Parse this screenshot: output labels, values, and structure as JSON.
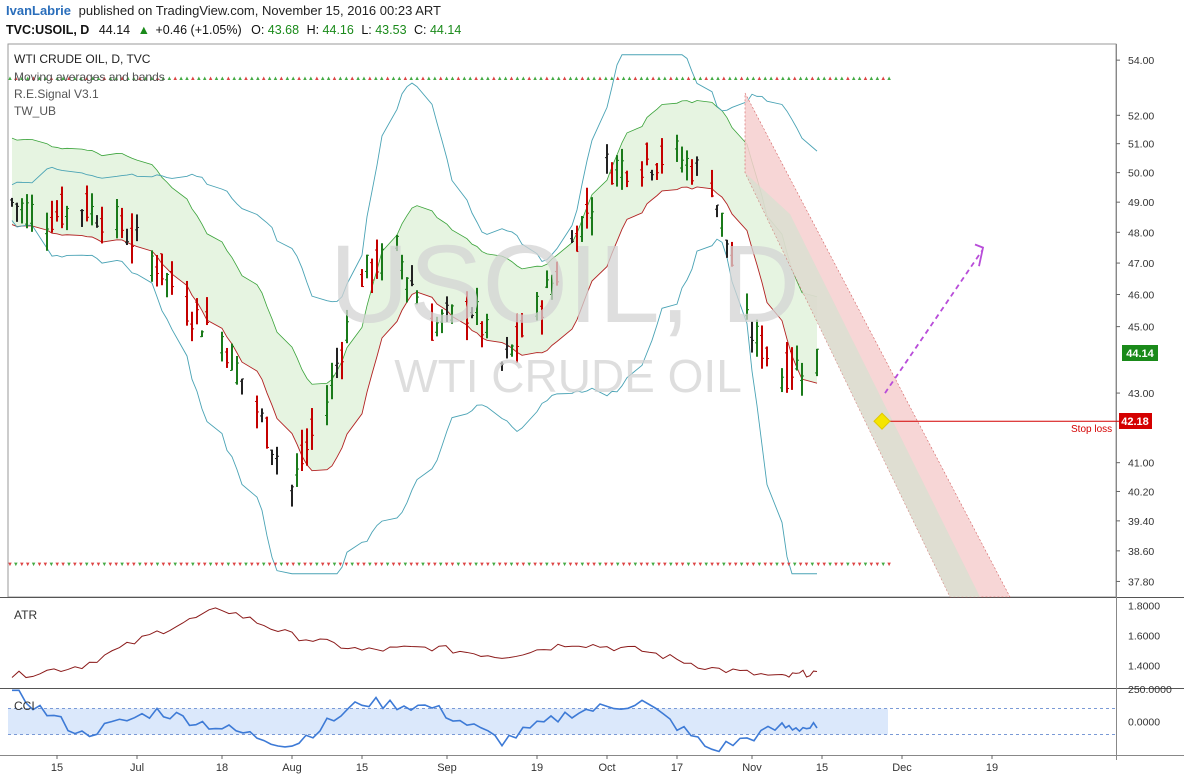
{
  "header": {
    "author": "IvanLabrie",
    "published_text": "published on TradingView.com, November 15, 2016 00:23 ART"
  },
  "quote": {
    "symbol": "TVC:USOIL, D",
    "last": "44.14",
    "change": "+0.46 (+1.05%)",
    "o_label": "O:",
    "o": "43.68",
    "h_label": "H:",
    "h": "44.16",
    "l_label": "L:",
    "l": "43.53",
    "c_label": "C:",
    "c": "44.14"
  },
  "legend": {
    "title": "WTI CRUDE OIL, D, TVC",
    "items": [
      "Moving averages and bands",
      "R.E.Signal V3.1",
      "TW_UB"
    ]
  },
  "watermark": {
    "big": "USOIL, D",
    "small": "WTI CRUDE OIL"
  },
  "colors": {
    "up": "#1a7a1a",
    "down": "#c40000",
    "neutral": "#222222",
    "band_fill": "#e6f4e1",
    "band_edge": "#3aa33a",
    "ma": "#b22222",
    "bollinger": "#4aa3b5",
    "channel_fill": "#f6d0d0",
    "channel_inner": "#cfe3cf",
    "cci_line": "#3d7ad6",
    "cci_fill": "#dbe8fb",
    "atr_line": "#8b1a1a",
    "projection": "#b84dd9",
    "stop": "#d40000",
    "last_price_box": "#1a8a1a",
    "marker": "#f5e500"
  },
  "annotations": {
    "stop_loss_label": "Stop loss",
    "stop_loss_price": "42.18",
    "last_price_label": "44.14"
  },
  "chart_data": [
    {
      "type": "line",
      "title": "WTI CRUDE OIL, D, TVC",
      "xlabel": "",
      "ylabel": "",
      "y_axis_ticks": [
        "54.00",
        "52.00",
        "51.00",
        "50.00",
        "49.00",
        "48.00",
        "47.00",
        "46.00",
        "45.00",
        "43.00",
        "41.00",
        "40.20",
        "39.40",
        "38.60",
        "37.80"
      ],
      "x_axis_ticks": [
        "15",
        "Jul",
        "18",
        "Aug",
        "15",
        "Sep",
        "19",
        "Oct",
        "17",
        "Nov",
        "15",
        "Dec",
        "19"
      ],
      "ylim": [
        37.4,
        54.6
      ],
      "scale": "log",
      "x": [
        "2016-06-06",
        "2016-06-13",
        "2016-06-20",
        "2016-06-27",
        "2016-07-05",
        "2016-07-11",
        "2016-07-18",
        "2016-07-25",
        "2016-08-01",
        "2016-08-08",
        "2016-08-15",
        "2016-08-22",
        "2016-08-29",
        "2016-09-06",
        "2016-09-12",
        "2016-09-19",
        "2016-09-26",
        "2016-10-03",
        "2016-10-10",
        "2016-10-17",
        "2016-10-24",
        "2016-10-31",
        "2016-11-07",
        "2016-11-14"
      ],
      "series": [
        {
          "values": [
            49.0,
            48.5,
            48.9,
            48.3,
            47.0,
            45.6,
            44.7,
            42.5,
            40.3,
            42.8,
            46.6,
            47.4,
            45.0,
            45.6,
            43.8,
            45.5,
            47.6,
            50.2,
            50.4,
            50.6,
            49.7,
            45.0,
            43.6,
            44.14
          ]
        }
      ],
      "annotations": {
        "stop_loss": 42.18,
        "last": 44.14
      }
    },
    {
      "type": "line",
      "title": "ATR",
      "y_axis_ticks": [
        "1.8000",
        "1.6000",
        "1.4000"
      ],
      "ylim": [
        1.25,
        1.85
      ],
      "x": [
        "2016-06-06",
        "2016-06-20",
        "2016-07-05",
        "2016-07-18",
        "2016-08-01",
        "2016-08-15",
        "2016-08-29",
        "2016-09-12",
        "2016-09-26",
        "2016-10-10",
        "2016-10-24",
        "2016-11-07",
        "2016-11-14"
      ],
      "values": [
        1.33,
        1.4,
        1.62,
        1.78,
        1.6,
        1.5,
        1.52,
        1.46,
        1.55,
        1.5,
        1.38,
        1.32,
        1.36
      ]
    },
    {
      "type": "line",
      "title": "CCI",
      "y_axis_ticks": [
        "250.0000",
        "0.0000"
      ],
      "ylim": [
        -250,
        250
      ],
      "x": [
        "2016-06-06",
        "2016-06-20",
        "2016-07-05",
        "2016-07-18",
        "2016-08-01",
        "2016-08-15",
        "2016-08-29",
        "2016-09-12",
        "2016-09-26",
        "2016-10-10",
        "2016-10-24",
        "2016-11-07",
        "2016-11-14"
      ],
      "values": [
        230,
        -100,
        80,
        -50,
        -180,
        150,
        110,
        -150,
        70,
        150,
        -220,
        -40,
        -50
      ]
    }
  ]
}
